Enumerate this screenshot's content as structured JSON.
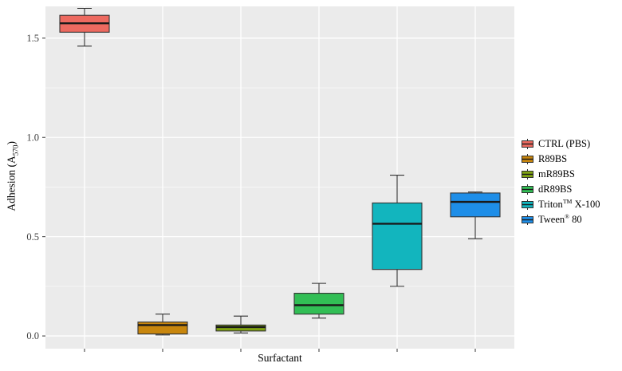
{
  "figure": {
    "xlabel": "Surfactant",
    "ylabel_pre": "Adhesion (A",
    "ylabel_sub": "570",
    "ylabel_post": ")"
  },
  "chart_data": {
    "type": "boxplot",
    "title": "",
    "xlabel": "Surfactant",
    "ylabel": "Adhesion (A570)",
    "ylim": [
      -0.064,
      1.66
    ],
    "yticks": [
      0,
      0.5,
      1,
      1.5
    ],
    "ytick_labels": [
      "0.0",
      "0.5",
      "1.0",
      "1.5"
    ],
    "grid": "on",
    "legend_position": "right",
    "panel_bg": "#EBEBEB",
    "grid_color": "#FFFFFF",
    "box_outline": "#333333",
    "categories": [
      "CTRL (PBS)",
      "R89BS",
      "mR89BS",
      "dR89BS",
      "Triton TM X-100",
      "Tween ® 80"
    ],
    "series": [
      {
        "name": "CTRL (PBS)",
        "color": "#ED6A60",
        "whisker_low": 1.46,
        "q1": 1.53,
        "median": 1.575,
        "q3": 1.615,
        "whisker_high": 1.65
      },
      {
        "name": "R89BS",
        "color": "#C8860D",
        "whisker_low": 0.005,
        "q1": 0.01,
        "median": 0.055,
        "q3": 0.07,
        "whisker_high": 0.11
      },
      {
        "name": "mR89BS",
        "color": "#7FA212",
        "whisker_low": 0.015,
        "q1": 0.025,
        "median": 0.045,
        "q3": 0.055,
        "whisker_high": 0.1
      },
      {
        "name": "dR89BS",
        "color": "#32BE55",
        "whisker_low": 0.09,
        "q1": 0.11,
        "median": 0.155,
        "q3": 0.215,
        "whisker_high": 0.265
      },
      {
        "name": "Triton TM X-100",
        "color": "#12B5BE",
        "whisker_low": 0.25,
        "q1": 0.335,
        "median": 0.565,
        "q3": 0.67,
        "whisker_high": 0.81
      },
      {
        "name": "Tween ® 80",
        "color": "#1E8EE8",
        "whisker_low": 0.49,
        "q1": 0.6,
        "median": 0.675,
        "q3": 0.72,
        "whisker_high": 0.725
      }
    ]
  },
  "legend": {
    "items": [
      {
        "pre": "CTRL (PBS)",
        "sup": "",
        "post": ""
      },
      {
        "pre": "R89BS",
        "sup": "",
        "post": ""
      },
      {
        "pre": "mR89BS",
        "sup": "",
        "post": ""
      },
      {
        "pre": "dR89BS",
        "sup": "",
        "post": ""
      },
      {
        "pre": "Triton",
        "sup": "TM",
        "post": " X-100"
      },
      {
        "pre": "Tween",
        "sup": "®",
        "post": " 80"
      }
    ]
  }
}
